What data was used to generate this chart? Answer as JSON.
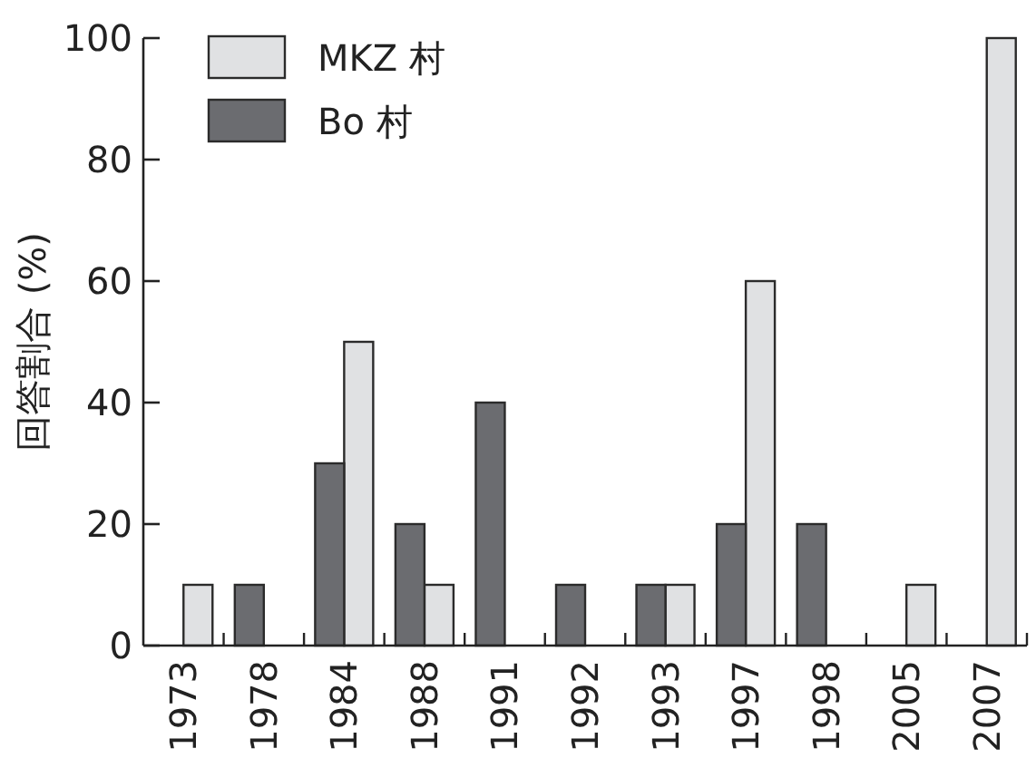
{
  "chart_data": {
    "type": "bar",
    "ylabel": "回答割合 (%)",
    "categories": [
      "1973",
      "1978",
      "1984",
      "1988",
      "1991",
      "1992",
      "1993",
      "1997",
      "1998",
      "2005",
      "2007"
    ],
    "series": [
      {
        "name": "MKZ 村",
        "color": "#e0e1e3",
        "values": [
          10,
          0,
          50,
          10,
          0,
          0,
          10,
          60,
          0,
          10,
          100
        ]
      },
      {
        "name": "Bo 村",
        "color": "#6b6c70",
        "values": [
          0,
          10,
          30,
          20,
          40,
          10,
          10,
          20,
          20,
          0,
          0
        ]
      }
    ],
    "ylim": [
      0,
      100
    ],
    "yticks": [
      0,
      20,
      40,
      60,
      80,
      100
    ],
    "legend": "top left",
    "grid": false
  }
}
